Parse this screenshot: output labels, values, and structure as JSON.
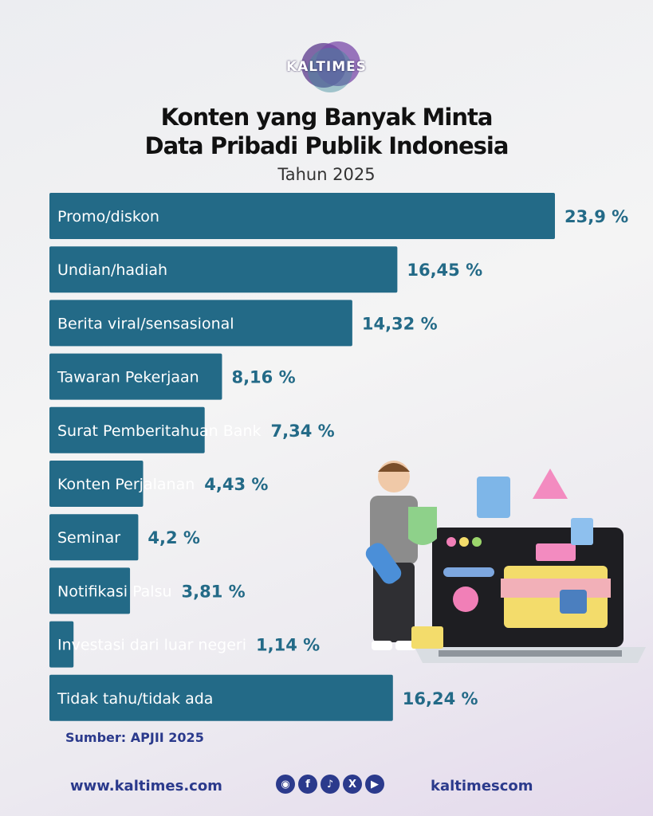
{
  "brand": {
    "logo_text": "KALTIMES"
  },
  "chart_data": {
    "type": "bar",
    "orientation": "horizontal",
    "title": "Konten yang Banyak Minta Data Pribadi Publik Indonesia",
    "title_lines": [
      "Konten yang Banyak Minta",
      "Data Pribadi Publik Indonesia"
    ],
    "subtitle": "Tahun 2025",
    "categories": [
      "Promo/diskon",
      "Undian/hadiah",
      "Berita viral/sensasional",
      "Tawaran Pekerjaan",
      "Surat Pemberitahuan Bank",
      "Konten  Perjalanan",
      "Seminar",
      "Notifikasi Palsu",
      "Investasi dari luar negeri",
      "Tidak tahu/tidak ada"
    ],
    "values": [
      23.9,
      16.45,
      14.32,
      8.16,
      7.34,
      4.43,
      4.2,
      3.81,
      1.14,
      16.24
    ],
    "value_labels": [
      "23,9 %",
      "16,45 %",
      "14,32 %",
      "8,16 %",
      "7,34 %",
      "4,43 %",
      "4,2 %",
      "3,81 %",
      "1,14 %",
      "16,24 %"
    ],
    "xlim": [
      0,
      23.9
    ],
    "bar_color": "#236a87",
    "grid": false,
    "legend": "none"
  },
  "source": "Sumber: APJII 2025",
  "footer": {
    "website": "www.kaltimes.com",
    "handle": "kaltimescom",
    "social_icons": [
      "instagram-icon",
      "facebook-icon",
      "tiktok-icon",
      "x-icon",
      "youtube-icon"
    ]
  }
}
